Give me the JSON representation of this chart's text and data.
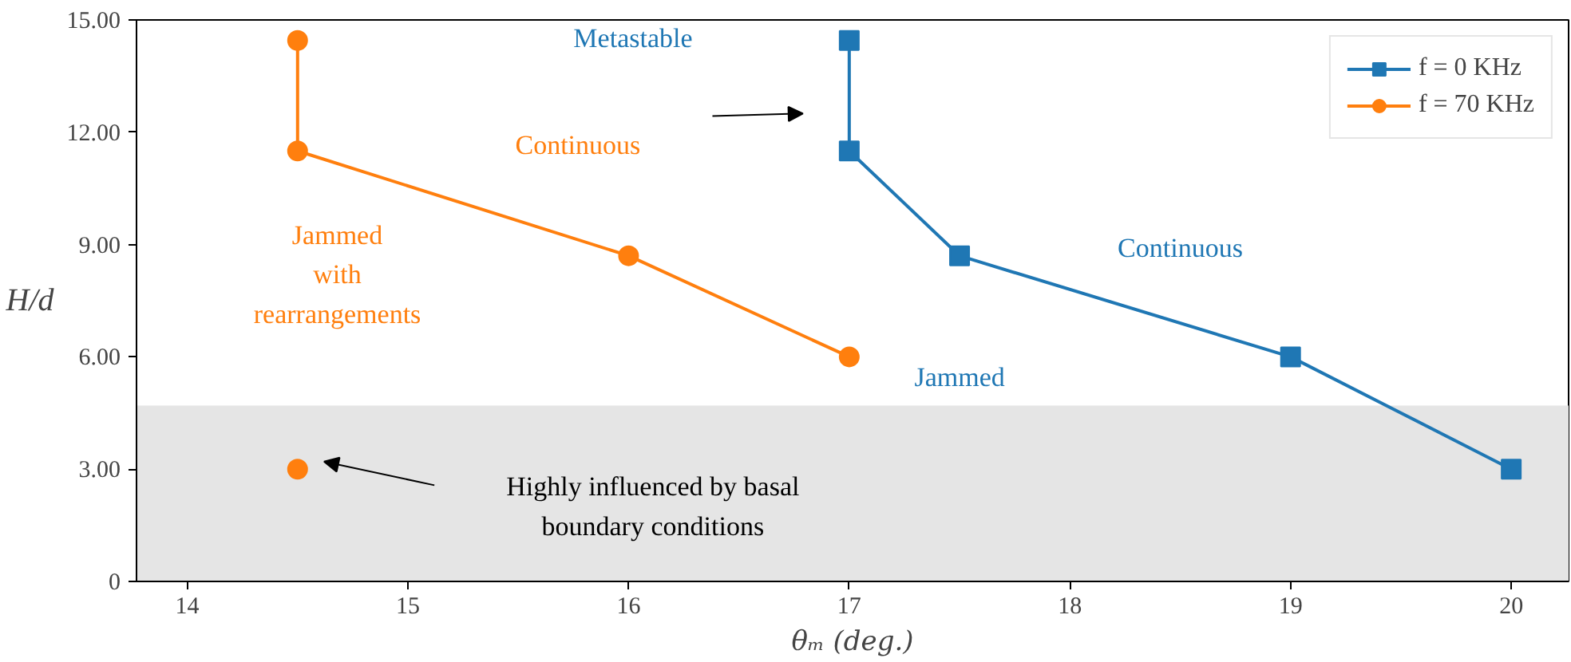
{
  "chart_data": {
    "type": "line",
    "xlabel": "θₘ (deg.)",
    "ylabel": "H/d",
    "xlim": [
      13.77,
      20.26
    ],
    "xticks": [
      14,
      15,
      16,
      17,
      18,
      19,
      20
    ],
    "ylim": [
      0,
      15
    ],
    "yticks": [
      {
        "value": 0,
        "label": "0"
      },
      {
        "value": 3,
        "label": "3.00"
      },
      {
        "value": 6,
        "label": "6.00"
      },
      {
        "value": 9,
        "label": "9.00"
      },
      {
        "value": 12,
        "label": "12.00"
      },
      {
        "value": 15,
        "label": "15.00"
      }
    ],
    "series": [
      {
        "name": "f = 0 KHz",
        "color": "#1f77b4",
        "marker": "square",
        "x": [
          17,
          17,
          17.5,
          19,
          20
        ],
        "values": [
          14.45,
          11.5,
          8.7,
          6.0,
          3.0
        ]
      },
      {
        "name": "f = 70 KHz",
        "color": "#ff7f0e",
        "marker": "circle",
        "x": [
          14.5,
          14.5,
          16,
          17
        ],
        "values": [
          14.45,
          11.5,
          8.7,
          6.0
        ]
      },
      {
        "color": "#ff7f0e",
        "type": "scatter",
        "marker": "circle",
        "x": [
          14.5
        ],
        "values": [
          3.0
        ]
      }
    ],
    "bands": [
      {
        "axis": "y",
        "from": 0,
        "to": 4.7,
        "color": "#e5e5e5"
      }
    ],
    "annotations": [
      "Metastable",
      "Continuous",
      "Jammed\nwith\nrearrangements",
      "Continuous",
      "Jammed",
      "Highly influenced by basal\nboundary conditions"
    ],
    "grid": false,
    "legend": "top right"
  }
}
